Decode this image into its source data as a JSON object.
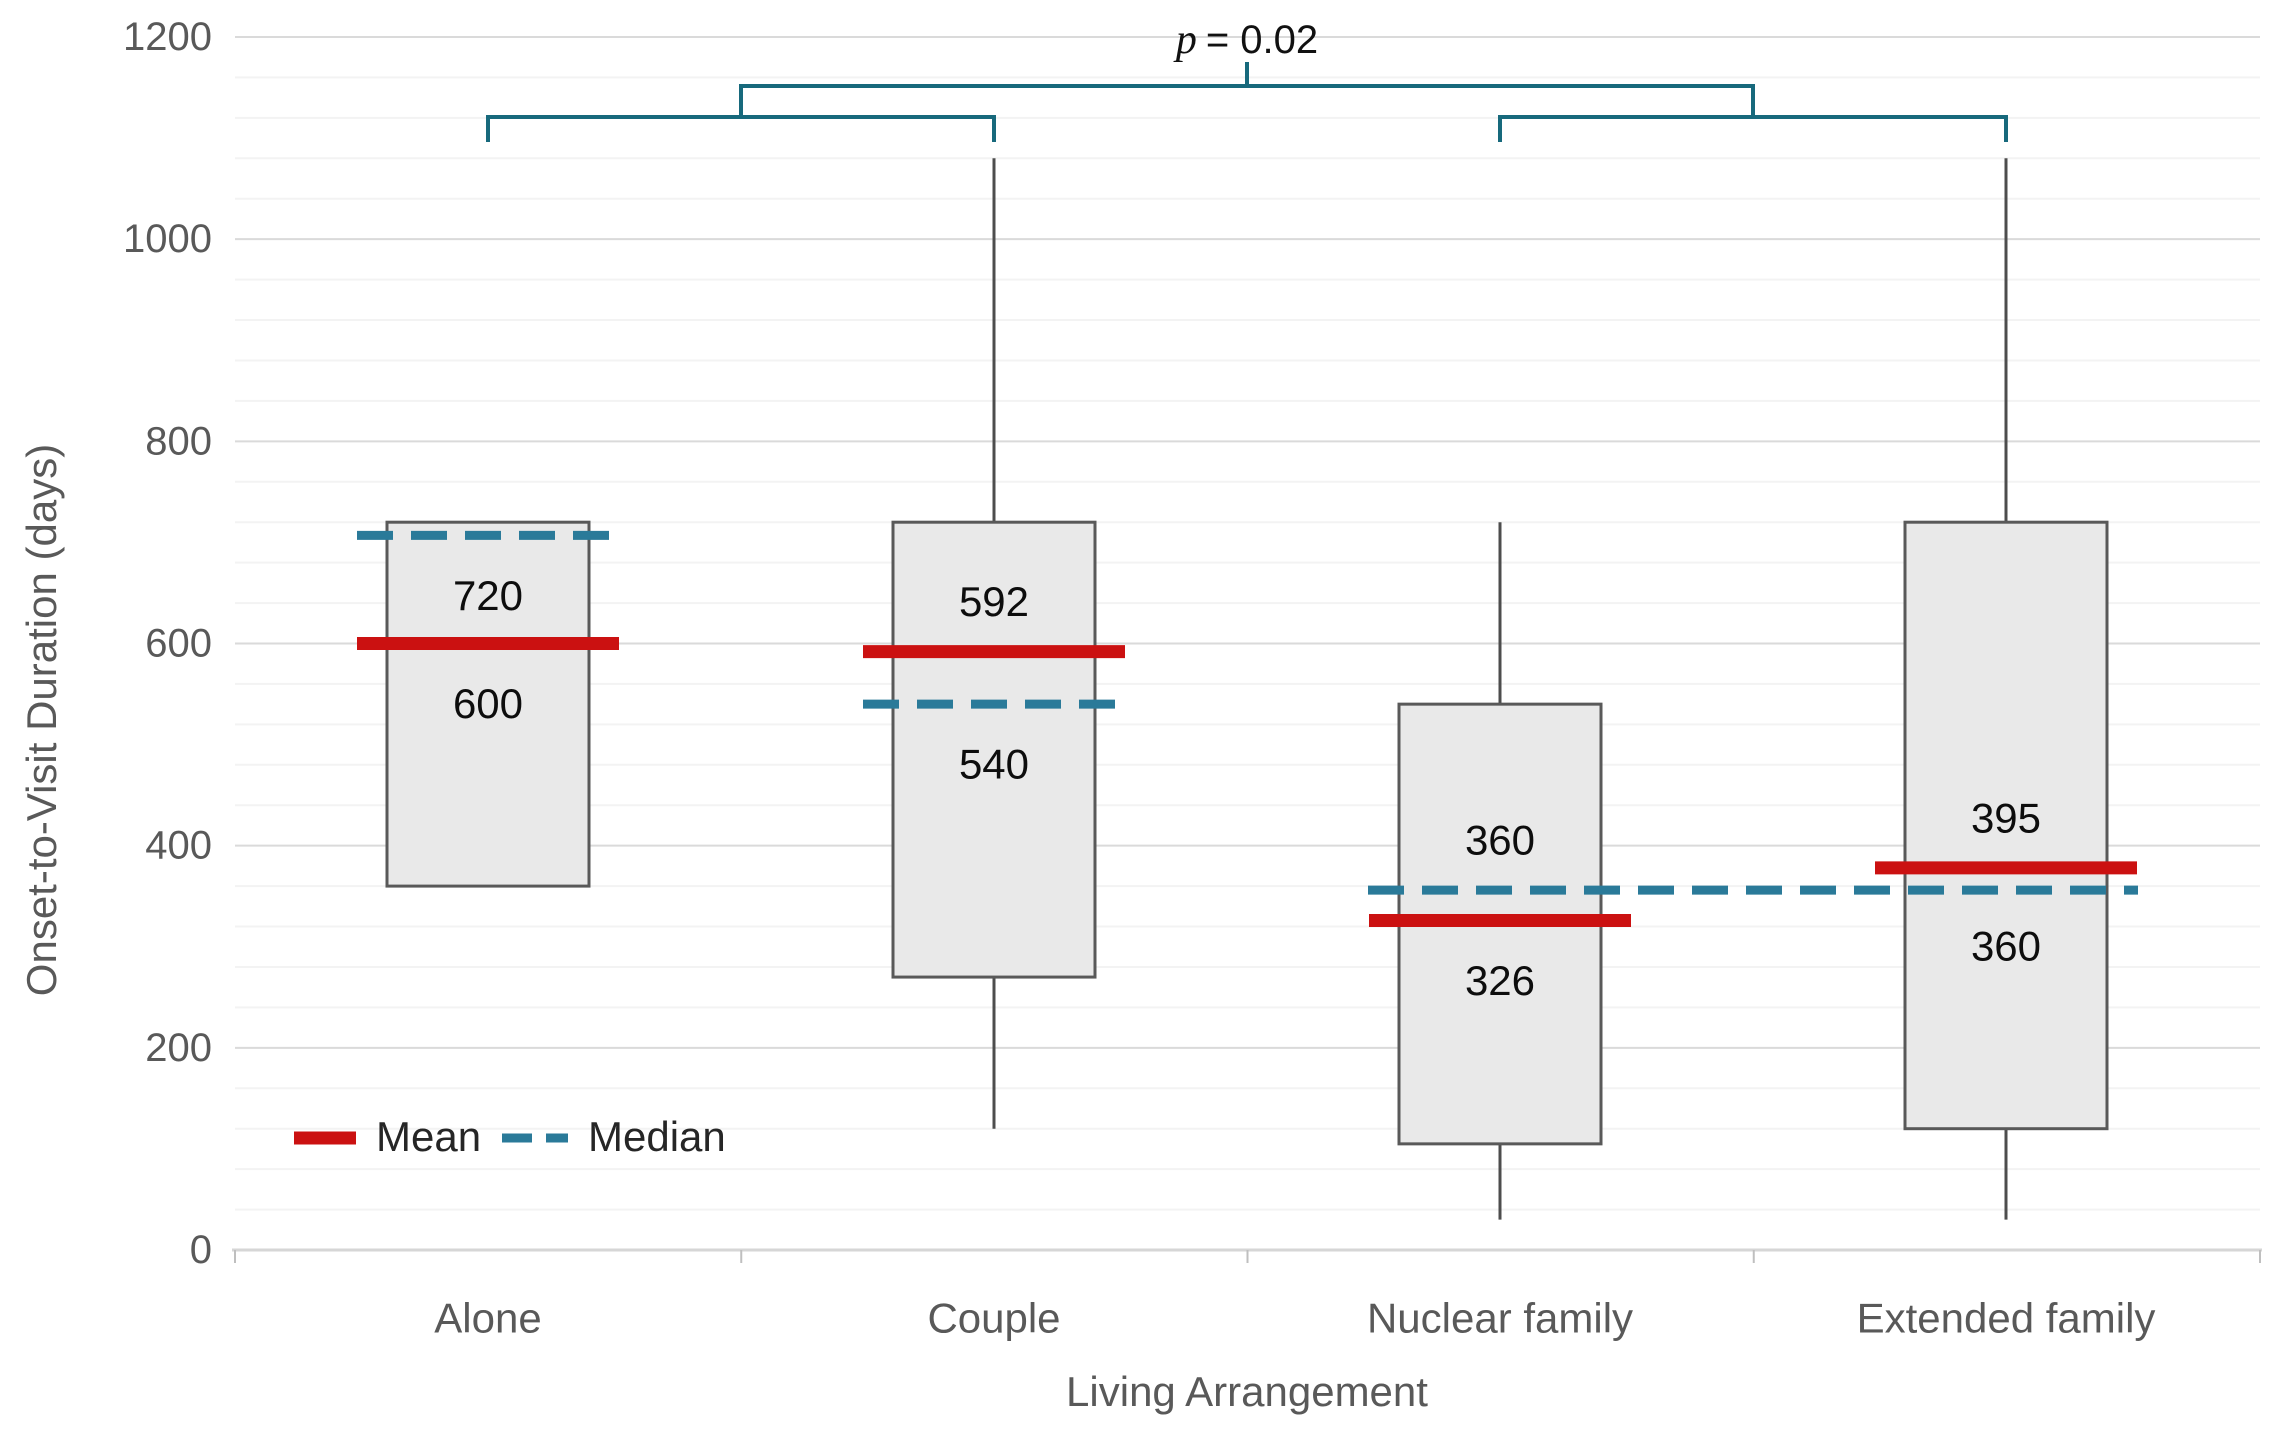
{
  "chart_data": {
    "type": "box",
    "title": "",
    "xlabel": "Living Arrangement",
    "ylabel": "Onset-to-Visit Duration (days)",
    "ylim": [
      0,
      1200
    ],
    "yticks": [
      0,
      200,
      400,
      600,
      800,
      1000,
      1200
    ],
    "grid": {
      "major_step": 200,
      "minor_step": 40,
      "major_on": true,
      "minor_on": true
    },
    "categories": [
      "Alone",
      "Couple",
      "Nuclear family",
      "Extended family"
    ],
    "series": [
      {
        "name": "Alone",
        "whisker_low": 360,
        "q1": 360,
        "median": 720,
        "q3": 720,
        "whisker_high": 720,
        "mean": 600,
        "labels": [
          {
            "text": "720",
            "attach": "median",
            "side": "below"
          },
          {
            "text": "600",
            "attach": "mean",
            "side": "below"
          }
        ]
      },
      {
        "name": "Couple",
        "whisker_low": 120,
        "q1": 270,
        "median": 540,
        "q3": 720,
        "whisker_high": 1080,
        "mean": 592,
        "labels": [
          {
            "text": "592",
            "attach": "mean",
            "side": "above"
          },
          {
            "text": "540",
            "attach": "median",
            "side": "below"
          }
        ]
      },
      {
        "name": "Nuclear family",
        "whisker_low": 30,
        "q1": 105,
        "median": 360,
        "q3": 540,
        "whisker_high": 720,
        "mean": 326,
        "labels": [
          {
            "text": "360",
            "attach": "median",
            "side": "above"
          },
          {
            "text": "326",
            "attach": "mean",
            "side": "below"
          }
        ]
      },
      {
        "name": "Extended family",
        "whisker_low": 30,
        "q1": 120,
        "median": 360,
        "q3": 720,
        "whisker_high": 1080,
        "mean": 395,
        "labels": [
          {
            "text": "395",
            "attach": "mean",
            "side": "above"
          },
          {
            "text": "360",
            "attach": "median",
            "side": "below"
          }
        ]
      }
    ],
    "legend": [
      {
        "label": "Mean",
        "style": "solid",
        "color": "#cb1111"
      },
      {
        "label": "Median",
        "style": "dashed",
        "color": "#2a7a99"
      }
    ],
    "significance": {
      "p_symbol": "p",
      "p_rest": "= 0.02",
      "compares": [
        [
          "Alone",
          "Couple"
        ],
        [
          "Nuclear family",
          "Extended family"
        ]
      ]
    },
    "colors": {
      "mean_line": "#cb1111",
      "median_line": "#2a7a99",
      "bracket": "#17697c",
      "box_fill": "#e9e9e9",
      "box_border": "#595959",
      "whisker": "#4d4d4d",
      "grid_major": "#dadada",
      "grid_minor": "#f3f3f3",
      "axis_line": "#d6d6d6",
      "axis_tick": "#bfbfbf",
      "tick_text": "#595959",
      "annotation_text": "#0d0d0d"
    }
  }
}
